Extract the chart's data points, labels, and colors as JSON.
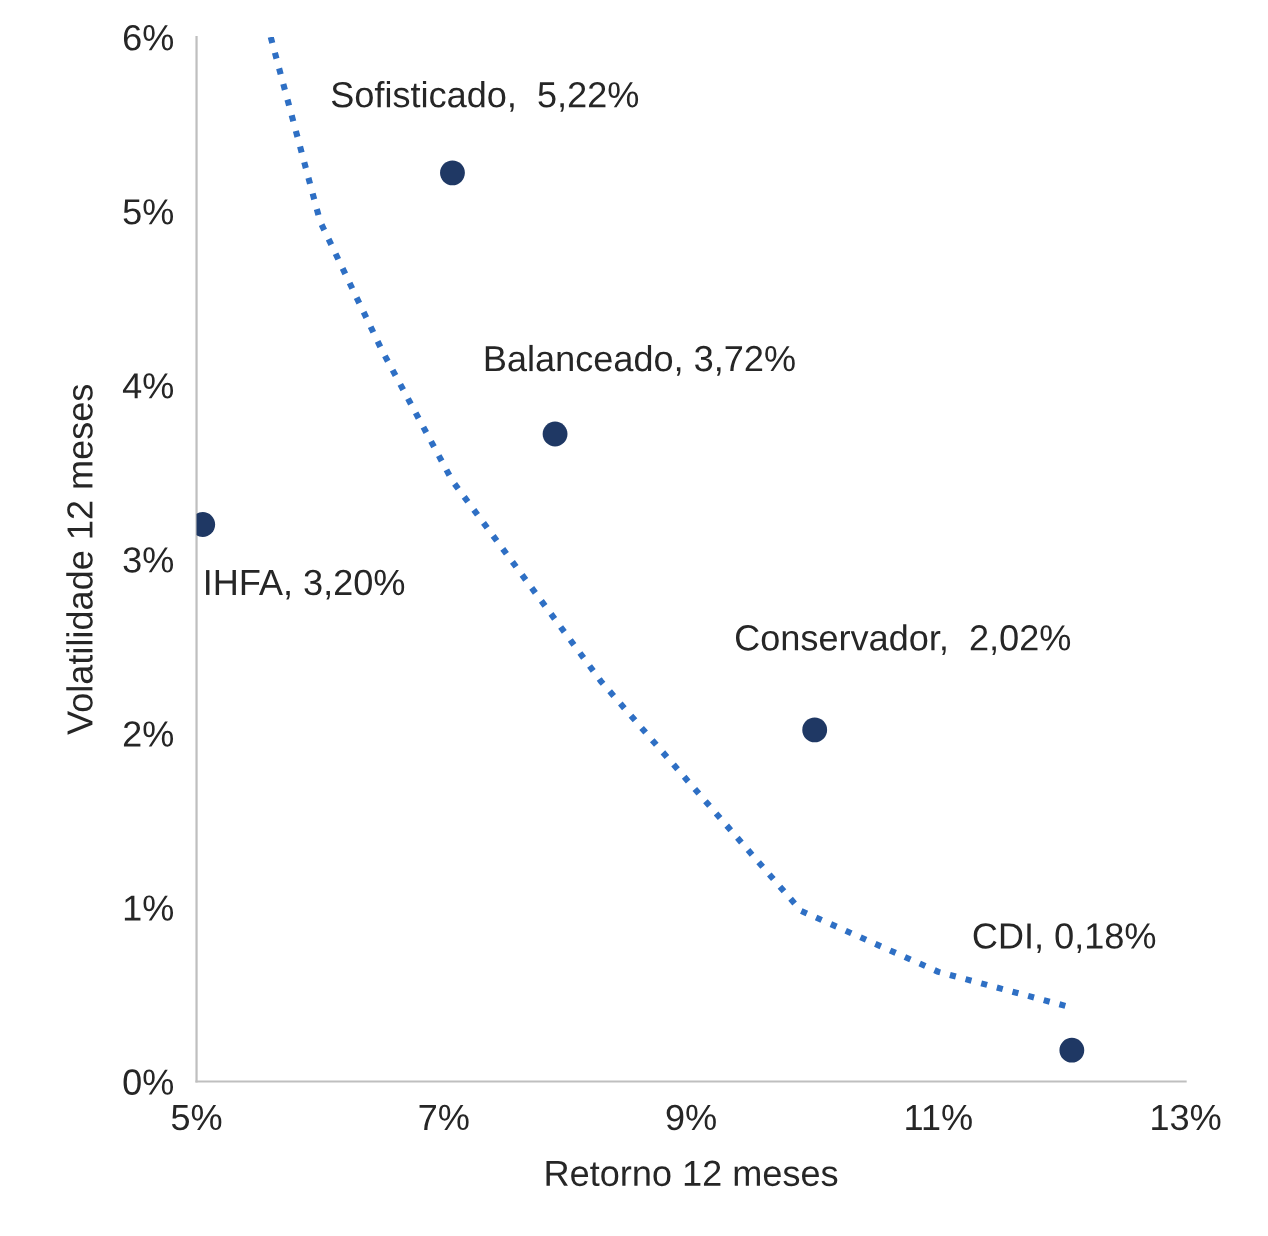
{
  "chart_data": {
    "type": "scatter",
    "xlabel": "Retorno 12 meses",
    "ylabel": "Volatilidade 12 meses",
    "xlim": [
      5,
      13
    ],
    "ylim": [
      0,
      6
    ],
    "xticks": [
      {
        "value": 5,
        "label": "5%"
      },
      {
        "value": 7,
        "label": "7%"
      },
      {
        "value": 9,
        "label": "9%"
      },
      {
        "value": 11,
        "label": "11%"
      },
      {
        "value": 13,
        "label": "13%"
      }
    ],
    "yticks": [
      {
        "value": 0,
        "label": "0%"
      },
      {
        "value": 1,
        "label": "1%"
      },
      {
        "value": 2,
        "label": "2%"
      },
      {
        "value": 3,
        "label": "3%"
      },
      {
        "value": 4,
        "label": "4%"
      },
      {
        "value": 5,
        "label": "5%"
      },
      {
        "value": 6,
        "label": "6%"
      }
    ],
    "grid": false,
    "legend": false,
    "marker": "circle",
    "series": [
      {
        "color": "#1f3864",
        "x": [
          5.05,
          7.07,
          7.9,
          10.0,
          12.08
        ],
        "values": [
          3.2,
          5.22,
          3.72,
          2.02,
          0.18
        ]
      },
      {
        "type": "line",
        "color": "#2e6fc4",
        "line_style": "dotted",
        "marker": "none",
        "x": [
          5.6,
          6.0,
          6.5,
          7.07,
          8.27,
          9.89,
          11.0,
          12.05
        ],
        "values": [
          6.0,
          4.94,
          4.2,
          3.45,
          2.3,
          0.98,
          0.63,
          0.43
        ]
      }
    ],
    "annotations": [
      {
        "text": "IHFA, 3,20%",
        "x": 5.05,
        "y": 3.2
      },
      {
        "text": "Sofisticado,  5,22%",
        "x": 7.07,
        "y": 5.22
      },
      {
        "text": "Balanceado, 3,72%",
        "x": 7.9,
        "y": 3.72
      },
      {
        "text": "Conservador,  2,02%",
        "x": 10.0,
        "y": 2.02
      },
      {
        "text": "CDI, 0,18%",
        "x": 12.08,
        "y": 0.18
      }
    ]
  }
}
